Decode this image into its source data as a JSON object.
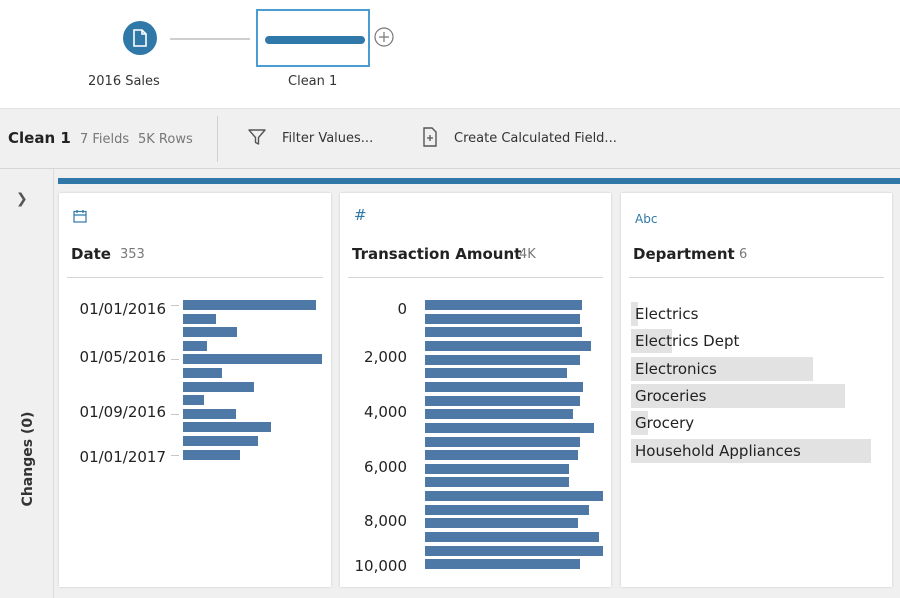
{
  "flow": {
    "input_node": {
      "label": "2016 Sales",
      "icon": "file-icon"
    },
    "clean_node": {
      "label": "Clean 1"
    },
    "add_icon": "plus-circle-icon"
  },
  "toolbar": {
    "title": "Clean 1",
    "fields": "7 Fields",
    "rows": "5K Rows",
    "filter_label": "Filter Values...",
    "calc_label": "Create Calculated Field..."
  },
  "sidebar": {
    "changes_label": "Changes (0)",
    "expand_icon": "chevron-right-icon"
  },
  "accent_color": "#2f78a8",
  "bar_color": "#4e79a7",
  "cards": [
    {
      "type_icon": "calendar-icon",
      "name": "Date",
      "count": "353",
      "axis_labels": [
        "01/01/2016",
        "01/05/2016",
        "01/09/2016",
        "01/01/2017"
      ],
      "bars": [
        0.96,
        0.24,
        0.39,
        0.17,
        1.0,
        0.28,
        0.51,
        0.15,
        0.38,
        0.63,
        0.54,
        0.41
      ]
    },
    {
      "type_icon": "hash-icon",
      "name": "Transaction Amount",
      "count": "4K",
      "axis_labels": [
        "0",
        "2,000",
        "4,000",
        "6,000",
        "8,000",
        "10,000"
      ],
      "bars": [
        0.88,
        0.87,
        0.88,
        0.93,
        0.87,
        0.8,
        0.89,
        0.87,
        0.83,
        0.95,
        0.87,
        0.86,
        0.81,
        0.81,
        1.0,
        0.92,
        0.86,
        0.98,
        1.0,
        0.87
      ]
    },
    {
      "type_icon": "abc-icon",
      "type_text": "Abc",
      "name": "Department",
      "count": "6",
      "categories": [
        {
          "label": "Electrics",
          "share": 0.03
        },
        {
          "label": "Electrics Dept",
          "share": 0.17
        },
        {
          "label": "Electronics",
          "share": 0.76
        },
        {
          "label": "Groceries",
          "share": 0.89
        },
        {
          "label": "Grocery",
          "share": 0.07
        },
        {
          "label": "Household Appliances",
          "share": 1.0
        }
      ]
    }
  ]
}
